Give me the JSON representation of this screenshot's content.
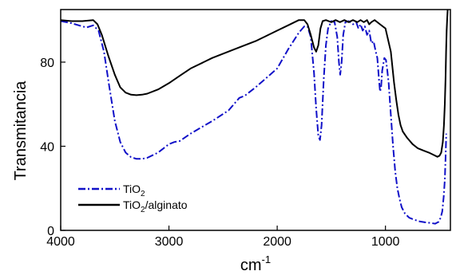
{
  "chart_data": {
    "type": "line",
    "title": "",
    "xlabel": "cm",
    "xlabel_superscript": "-1",
    "ylabel": "Transmitancia",
    "xlim": [
      4000,
      400
    ],
    "x_reversed": true,
    "ylim": [
      0,
      105
    ],
    "x_ticks": [
      4000,
      3000,
      2000,
      1000
    ],
    "x_tick_labels": [
      "4000",
      "3000",
      "2000",
      "1000"
    ],
    "y_ticks": [
      0,
      40,
      80
    ],
    "y_tick_labels": [
      "0",
      "40",
      "80"
    ],
    "grid": false,
    "legend_position": "bottom-left",
    "series": [
      {
        "label_main": "TiO",
        "label_sub": "2",
        "label_rest": "",
        "color": "#1010c8",
        "style": "dash-dot",
        "points": [
          [
            4000,
            99.5
          ],
          [
            3900,
            98.5
          ],
          [
            3800,
            97
          ],
          [
            3760,
            96.5
          ],
          [
            3700,
            97.5
          ],
          [
            3650,
            95
          ],
          [
            3600,
            85
          ],
          [
            3550,
            68
          ],
          [
            3500,
            52
          ],
          [
            3450,
            42
          ],
          [
            3400,
            37
          ],
          [
            3350,
            34.8
          ],
          [
            3300,
            34
          ],
          [
            3250,
            34
          ],
          [
            3200,
            34.5
          ],
          [
            3100,
            37
          ],
          [
            3000,
            41
          ],
          [
            2950,
            42
          ],
          [
            2900,
            42.5
          ],
          [
            2800,
            46
          ],
          [
            2600,
            52
          ],
          [
            2450,
            57
          ],
          [
            2400,
            60
          ],
          [
            2350,
            63
          ],
          [
            2300,
            64
          ],
          [
            2200,
            68
          ],
          [
            2000,
            77
          ],
          [
            1900,
            86
          ],
          [
            1800,
            94
          ],
          [
            1750,
            97
          ],
          [
            1720,
            97
          ],
          [
            1690,
            92
          ],
          [
            1660,
            75
          ],
          [
            1640,
            58
          ],
          [
            1620,
            45
          ],
          [
            1605,
            43
          ],
          [
            1590,
            50
          ],
          [
            1570,
            72
          ],
          [
            1550,
            88
          ],
          [
            1530,
            96
          ],
          [
            1500,
            99.5
          ],
          [
            1470,
            99
          ],
          [
            1445,
            92
          ],
          [
            1430,
            80
          ],
          [
            1418,
            74
          ],
          [
            1405,
            80
          ],
          [
            1390,
            93
          ],
          [
            1370,
            99
          ],
          [
            1340,
            99.5
          ],
          [
            1300,
            98
          ],
          [
            1270,
            99
          ],
          [
            1250,
            96
          ],
          [
            1230,
            98
          ],
          [
            1210,
            95
          ],
          [
            1190,
            97
          ],
          [
            1170,
            93
          ],
          [
            1150,
            95
          ],
          [
            1130,
            89
          ],
          [
            1110,
            90
          ],
          [
            1090,
            85
          ],
          [
            1075,
            82
          ],
          [
            1060,
            72
          ],
          [
            1050,
            66
          ],
          [
            1040,
            68
          ],
          [
            1030,
            76
          ],
          [
            1010,
            82
          ],
          [
            995,
            81
          ],
          [
            985,
            77
          ],
          [
            970,
            70
          ],
          [
            950,
            55
          ],
          [
            930,
            40
          ],
          [
            910,
            28
          ],
          [
            890,
            20
          ],
          [
            870,
            15
          ],
          [
            850,
            11
          ],
          [
            820,
            8
          ],
          [
            780,
            6
          ],
          [
            730,
            5
          ],
          [
            680,
            4.2
          ],
          [
            630,
            3.8
          ],
          [
            580,
            3.5
          ],
          [
            540,
            3.2
          ],
          [
            510,
            4
          ],
          [
            490,
            6
          ],
          [
            475,
            9
          ],
          [
            462,
            16
          ],
          [
            452,
            24
          ],
          [
            445,
            34
          ],
          [
            438,
            46
          ]
        ]
      },
      {
        "label_main": "TiO",
        "label_sub": "2",
        "label_rest": "/alginato",
        "color": "#000000",
        "style": "solid",
        "points": [
          [
            4000,
            100
          ],
          [
            3900,
            99.5
          ],
          [
            3800,
            99.5
          ],
          [
            3700,
            100
          ],
          [
            3660,
            98
          ],
          [
            3620,
            93
          ],
          [
            3560,
            83
          ],
          [
            3500,
            74
          ],
          [
            3450,
            68
          ],
          [
            3400,
            65.5
          ],
          [
            3350,
            64.5
          ],
          [
            3300,
            64.3
          ],
          [
            3250,
            64.5
          ],
          [
            3200,
            65
          ],
          [
            3100,
            67
          ],
          [
            3000,
            70
          ],
          [
            2900,
            73.5
          ],
          [
            2800,
            77
          ],
          [
            2600,
            82
          ],
          [
            2400,
            86
          ],
          [
            2300,
            88
          ],
          [
            2200,
            90
          ],
          [
            2100,
            92.5
          ],
          [
            2000,
            95
          ],
          [
            1900,
            97.5
          ],
          [
            1800,
            100
          ],
          [
            1750,
            100
          ],
          [
            1720,
            98
          ],
          [
            1690,
            93
          ],
          [
            1660,
            87
          ],
          [
            1640,
            85
          ],
          [
            1620,
            88
          ],
          [
            1600,
            96
          ],
          [
            1580,
            99.5
          ],
          [
            1550,
            100
          ],
          [
            1500,
            99
          ],
          [
            1460,
            100
          ],
          [
            1420,
            99
          ],
          [
            1380,
            100
          ],
          [
            1340,
            99
          ],
          [
            1300,
            100
          ],
          [
            1260,
            99
          ],
          [
            1230,
            100
          ],
          [
            1200,
            99
          ],
          [
            1170,
            100
          ],
          [
            1150,
            98
          ],
          [
            1130,
            99
          ],
          [
            1100,
            100
          ],
          [
            1050,
            98
          ],
          [
            1000,
            96
          ],
          [
            950,
            85
          ],
          [
            920,
            70
          ],
          [
            900,
            62
          ],
          [
            880,
            55
          ],
          [
            860,
            50
          ],
          [
            840,
            47
          ],
          [
            800,
            44
          ],
          [
            750,
            41
          ],
          [
            700,
            39
          ],
          [
            650,
            38
          ],
          [
            600,
            37
          ],
          [
            560,
            36
          ],
          [
            520,
            35
          ],
          [
            500,
            35.5
          ],
          [
            485,
            37
          ],
          [
            470,
            42
          ],
          [
            460,
            50
          ],
          [
            452,
            60
          ],
          [
            445,
            72
          ],
          [
            440,
            85
          ],
          [
            435,
            95
          ],
          [
            430,
            100
          ],
          [
            425,
            105
          ]
        ]
      }
    ]
  }
}
